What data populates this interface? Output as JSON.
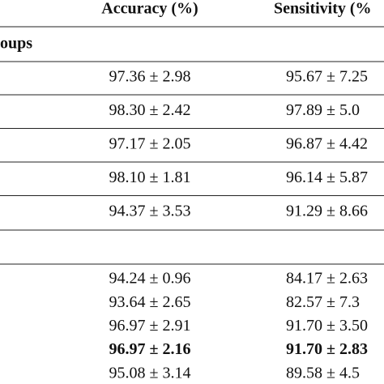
{
  "table": {
    "header": [
      "Accuracy (%)",
      "Sensitivity (%"
    ],
    "section_label": "oups",
    "rows_top": [
      {
        "cells": [
          "97.36 ± 2.98",
          "95.67 ± 7.25"
        ]
      },
      {
        "cells": [
          "98.30 ± 2.42",
          "97.89 ± 5.0"
        ]
      },
      {
        "cells": [
          "97.17 ± 2.05",
          "96.87 ± 4.42"
        ]
      },
      {
        "cells": [
          "98.10 ± 1.81",
          "96.14 ± 5.87"
        ]
      },
      {
        "cells": [
          "94.37 ± 3.53",
          "91.29 ± 8.66"
        ]
      }
    ],
    "rows_bottom": [
      {
        "cells": [
          "94.24 ± 0.96",
          "84.17 ± 2.63"
        ],
        "bold": false
      },
      {
        "cells": [
          "93.64 ± 2.65",
          "82.57 ± 7.3"
        ],
        "bold": false
      },
      {
        "cells": [
          "96.97 ± 2.91",
          "91.70 ± 3.50"
        ],
        "bold": false
      },
      {
        "cells": [
          "96.97 ± 2.16",
          "91.70 ± 2.83"
        ],
        "bold": true
      },
      {
        "cells": [
          "95.08 ± 3.14",
          "89.58 ± 4.5"
        ],
        "bold": false
      }
    ]
  }
}
